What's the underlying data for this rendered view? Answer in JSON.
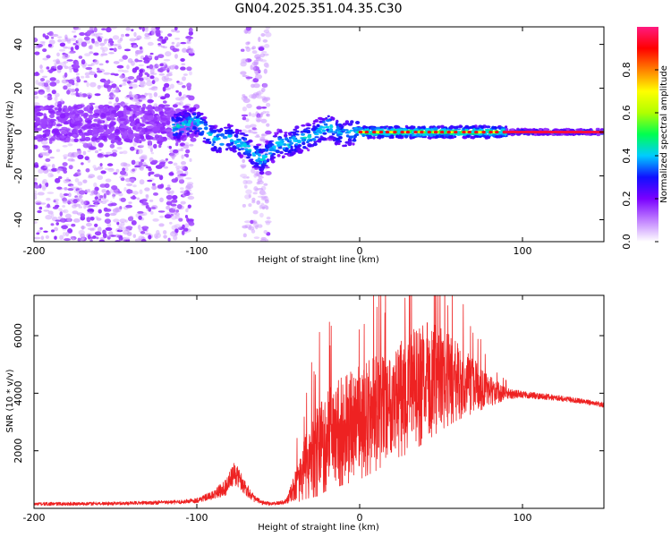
{
  "title": "GN04.2025.351.04.35.C30",
  "chart_data": [
    {
      "type": "heatmap",
      "name": "spectrogram",
      "xlabel": "Height of straight line (km)",
      "ylabel": "Frequency (Hz)",
      "xlim": [
        -200,
        150
      ],
      "ylim": [
        -50,
        48
      ],
      "xticks": [
        -200,
        -100,
        0,
        100
      ],
      "xtick_labels": [
        "-200",
        "-100",
        "0",
        "100"
      ],
      "yticks": [
        -40,
        -20,
        0,
        20,
        40
      ],
      "ytick_labels": [
        "-40",
        "-20",
        "0",
        "20",
        "40"
      ],
      "colorbar": {
        "label": "Normalized spectral amplitude",
        "range": [
          0,
          1
        ],
        "ticks": [
          0.0,
          0.2,
          0.4,
          0.6,
          0.8
        ],
        "tick_labels": [
          "0.0",
          "0.2",
          "0.4",
          "0.6",
          "0.8"
        ],
        "colors": [
          "#ffffff",
          "#c080ff",
          "#7a00ff",
          "#1010ff",
          "#00ccff",
          "#00ff50",
          "#b0ff00",
          "#ffff00",
          "#ff8000",
          "#ff0000",
          "#ff1a80"
        ]
      },
      "ridge_curve": {
        "x": [
          -115,
          -105,
          -100,
          -95,
          -90,
          -85,
          -80,
          -75,
          -70,
          -65,
          -60,
          -55,
          -50,
          -45,
          -40,
          -35,
          -30,
          -25,
          -20,
          -15,
          -10,
          -5,
          0,
          10,
          20,
          40,
          60,
          80,
          100,
          150
        ],
        "y": [
          2,
          4,
          5,
          1,
          -3,
          -4,
          -2,
          -5,
          -6,
          -10,
          -13,
          -9,
          -5,
          -6,
          -4,
          -3,
          -2,
          0,
          3,
          1,
          -1,
          0,
          0,
          0,
          0,
          0,
          0,
          0,
          0,
          0
        ]
      },
      "noise_regions": [
        {
          "x": [
            -200,
            -103
          ],
          "y": [
            -50,
            48
          ],
          "density": "high"
        },
        {
          "x": [
            -72,
            -56
          ],
          "y": [
            -50,
            48
          ],
          "density": "low"
        }
      ]
    },
    {
      "type": "line",
      "name": "snr",
      "xlabel": "Height of straight line (km)",
      "ylabel": "SNR (10 * v/v)",
      "xlim": [
        -200,
        150
      ],
      "ylim": [
        0,
        7400
      ],
      "xticks": [
        -200,
        -100,
        0,
        100
      ],
      "xtick_labels": [
        "-200",
        "-100",
        "0",
        "100"
      ],
      "yticks": [
        2000,
        4000,
        6000
      ],
      "ytick_labels": [
        "2000",
        "4000",
        "6000"
      ],
      "color": "#ee2222",
      "envelope": {
        "x": [
          -200,
          -150,
          -110,
          -100,
          -90,
          -82,
          -77,
          -74,
          -70,
          -65,
          -60,
          -55,
          -50,
          -45,
          -40,
          -35,
          -30,
          -25,
          -20,
          -10,
          0,
          10,
          20,
          30,
          40,
          50,
          60,
          70,
          80,
          90,
          100,
          120,
          150
        ],
        "mean": [
          150,
          170,
          220,
          280,
          450,
          750,
          1200,
          1050,
          700,
          350,
          200,
          160,
          180,
          250,
          700,
          1300,
          1800,
          2200,
          2500,
          2800,
          3100,
          3400,
          3800,
          4100,
          4500,
          4600,
          4500,
          4300,
          4100,
          4000,
          3950,
          3850,
          3600
        ],
        "amp": [
          60,
          60,
          70,
          90,
          150,
          300,
          400,
          350,
          250,
          120,
          80,
          60,
          60,
          100,
          500,
          900,
          1300,
          1600,
          1700,
          1800,
          1900,
          1900,
          1900,
          2000,
          2000,
          1700,
          1300,
          900,
          500,
          200,
          120,
          100,
          90
        ]
      }
    }
  ]
}
